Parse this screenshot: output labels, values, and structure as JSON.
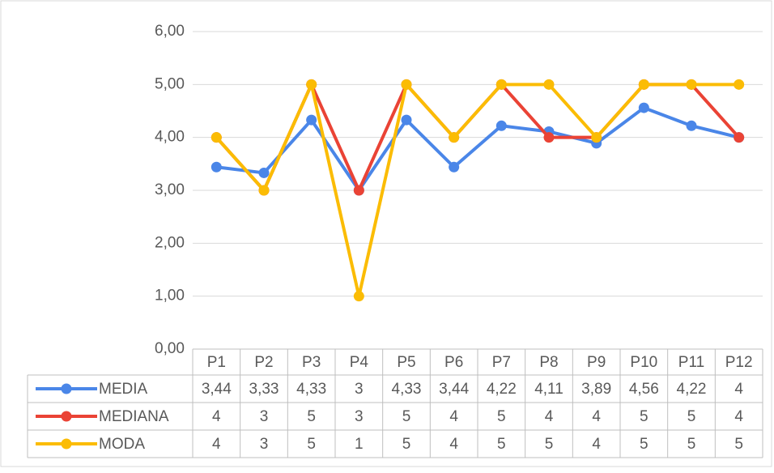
{
  "chart_data": {
    "type": "line",
    "categories": [
      "P1",
      "P2",
      "P3",
      "P4",
      "P5",
      "P6",
      "P7",
      "P8",
      "P9",
      "P10",
      "P11",
      "P12"
    ],
    "series": [
      {
        "name": "MEDIA",
        "color": "#4a86e8",
        "values": [
          3.44,
          3.33,
          4.33,
          3,
          4.33,
          3.44,
          4.22,
          4.11,
          3.89,
          4.56,
          4.22,
          4
        ],
        "value_labels": [
          "3,44",
          "3,33",
          "4,33",
          "3",
          "4,33",
          "3,44",
          "4,22",
          "4,11",
          "3,89",
          "4,56",
          "4,22",
          "4"
        ]
      },
      {
        "name": "MEDIANA",
        "color": "#ea4335",
        "values": [
          4,
          3,
          5,
          3,
          5,
          4,
          5,
          4,
          4,
          5,
          5,
          4
        ],
        "value_labels": [
          "4",
          "3",
          "5",
          "3",
          "5",
          "4",
          "5",
          "4",
          "4",
          "5",
          "5",
          "4"
        ]
      },
      {
        "name": "MODA",
        "color": "#fbbc04",
        "values": [
          4,
          3,
          5,
          1,
          5,
          4,
          5,
          5,
          4,
          5,
          5,
          5
        ],
        "value_labels": [
          "4",
          "3",
          "5",
          "1",
          "5",
          "4",
          "5",
          "5",
          "4",
          "5",
          "5",
          "5"
        ]
      }
    ],
    "ylim": [
      0,
      6
    ],
    "yticks": [
      {
        "value": 0,
        "label": "0,00"
      },
      {
        "value": 1,
        "label": "1,00"
      },
      {
        "value": 2,
        "label": "2,00"
      },
      {
        "value": 3,
        "label": "3,00"
      },
      {
        "value": 4,
        "label": "4,00"
      },
      {
        "value": 5,
        "label": "5,00"
      },
      {
        "value": 6,
        "label": "6,00"
      }
    ],
    "grid": true
  }
}
